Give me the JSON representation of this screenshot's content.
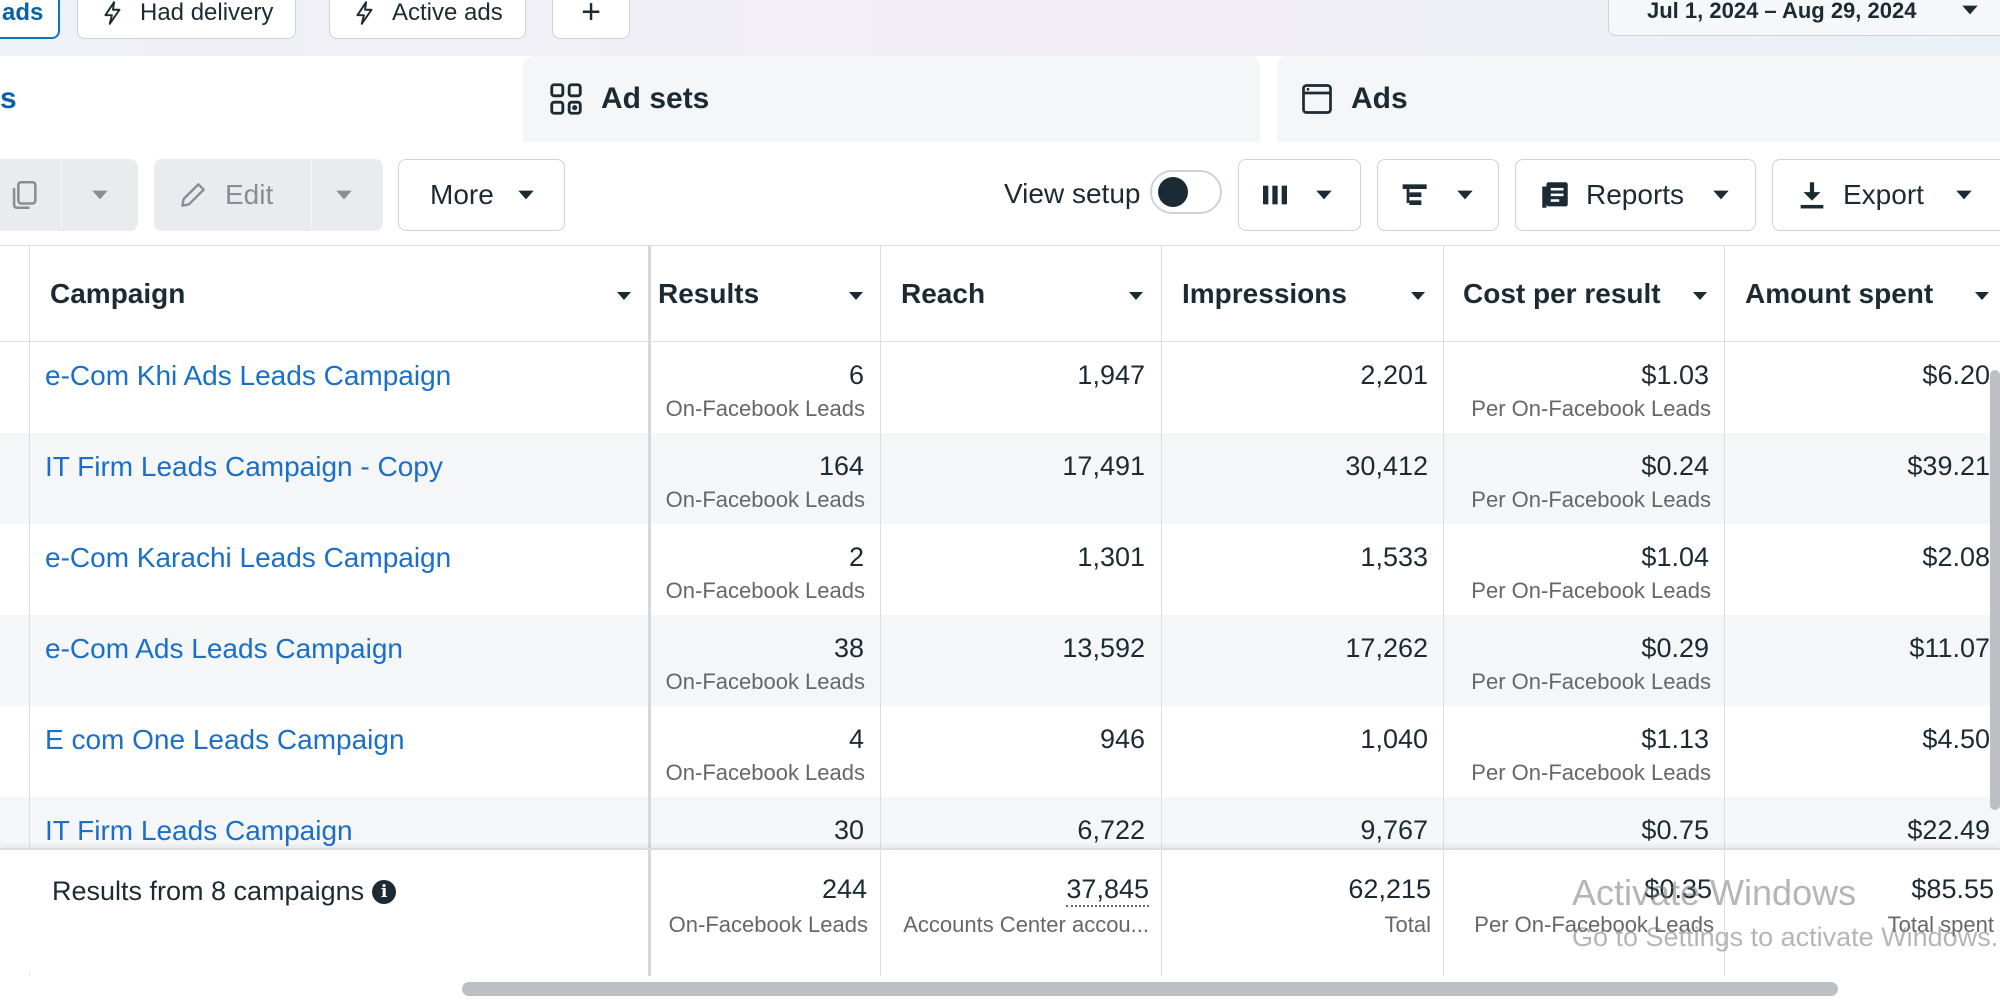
{
  "filters": {
    "active_chip": "ads",
    "had_delivery": "Had delivery",
    "active_ads": "Active ads",
    "add": "+",
    "date_range": "Jul 1, 2024 – Aug 29, 2024"
  },
  "tabs": {
    "campaigns_partial": "s",
    "ad_sets": "Ad sets",
    "ads": "Ads"
  },
  "toolbar": {
    "edit": "Edit",
    "more": "More",
    "view_setup": "View setup",
    "reports": "Reports",
    "export": "Export"
  },
  "columns": {
    "campaign": "Campaign",
    "results": "Results",
    "reach": "Reach",
    "impressions": "Impressions",
    "cost_per_result": "Cost per result",
    "amount_spent": "Amount spent"
  },
  "rows": [
    {
      "name": "e-Com Khi Ads Leads Campaign",
      "results": "6",
      "results_sub": "On-Facebook Leads",
      "reach": "1,947",
      "impressions": "2,201",
      "cost": "$1.03",
      "cost_sub": "Per On-Facebook Leads",
      "spent": "$6.20"
    },
    {
      "name": "IT Firm Leads Campaign - Copy",
      "results": "164",
      "results_sub": "On-Facebook Leads",
      "reach": "17,491",
      "impressions": "30,412",
      "cost": "$0.24",
      "cost_sub": "Per On-Facebook Leads",
      "spent": "$39.21"
    },
    {
      "name": "e-Com Karachi Leads Campaign",
      "results": "2",
      "results_sub": "On-Facebook Leads",
      "reach": "1,301",
      "impressions": "1,533",
      "cost": "$1.04",
      "cost_sub": "Per On-Facebook Leads",
      "spent": "$2.08"
    },
    {
      "name": "e-Com Ads Leads Campaign",
      "results": "38",
      "results_sub": "On-Facebook Leads",
      "reach": "13,592",
      "impressions": "17,262",
      "cost": "$0.29",
      "cost_sub": "Per On-Facebook Leads",
      "spent": "$11.07"
    },
    {
      "name": "E com One Leads Campaign",
      "results": "4",
      "results_sub": "On-Facebook Leads",
      "reach": "946",
      "impressions": "1,040",
      "cost": "$1.13",
      "cost_sub": "Per On-Facebook Leads",
      "spent": "$4.50"
    },
    {
      "name": "IT Firm Leads Campaign",
      "results": "30",
      "results_sub": "",
      "reach": "6,722",
      "impressions": "9,767",
      "cost": "$0.75",
      "cost_sub": "",
      "spent": "$22.49"
    }
  ],
  "totals": {
    "label": "Results from 8 campaigns",
    "info_icon": "i",
    "results": "244",
    "results_sub": "On-Facebook Leads",
    "reach": "37,845",
    "reach_sub": "Accounts Center accou...",
    "impressions": "62,215",
    "impressions_sub": "Total",
    "cost": "$0.35",
    "cost_sub": "Per On-Facebook Leads",
    "spent": "$85.55",
    "spent_sub": "Total spent"
  },
  "watermark": {
    "line1": "Activate Windows",
    "line2": "Go to Settings to activate Windows."
  },
  "colors": {
    "link": "#1a6fc8",
    "accent": "#0a78be",
    "text": "#1c2b33",
    "muted": "#65676b"
  }
}
